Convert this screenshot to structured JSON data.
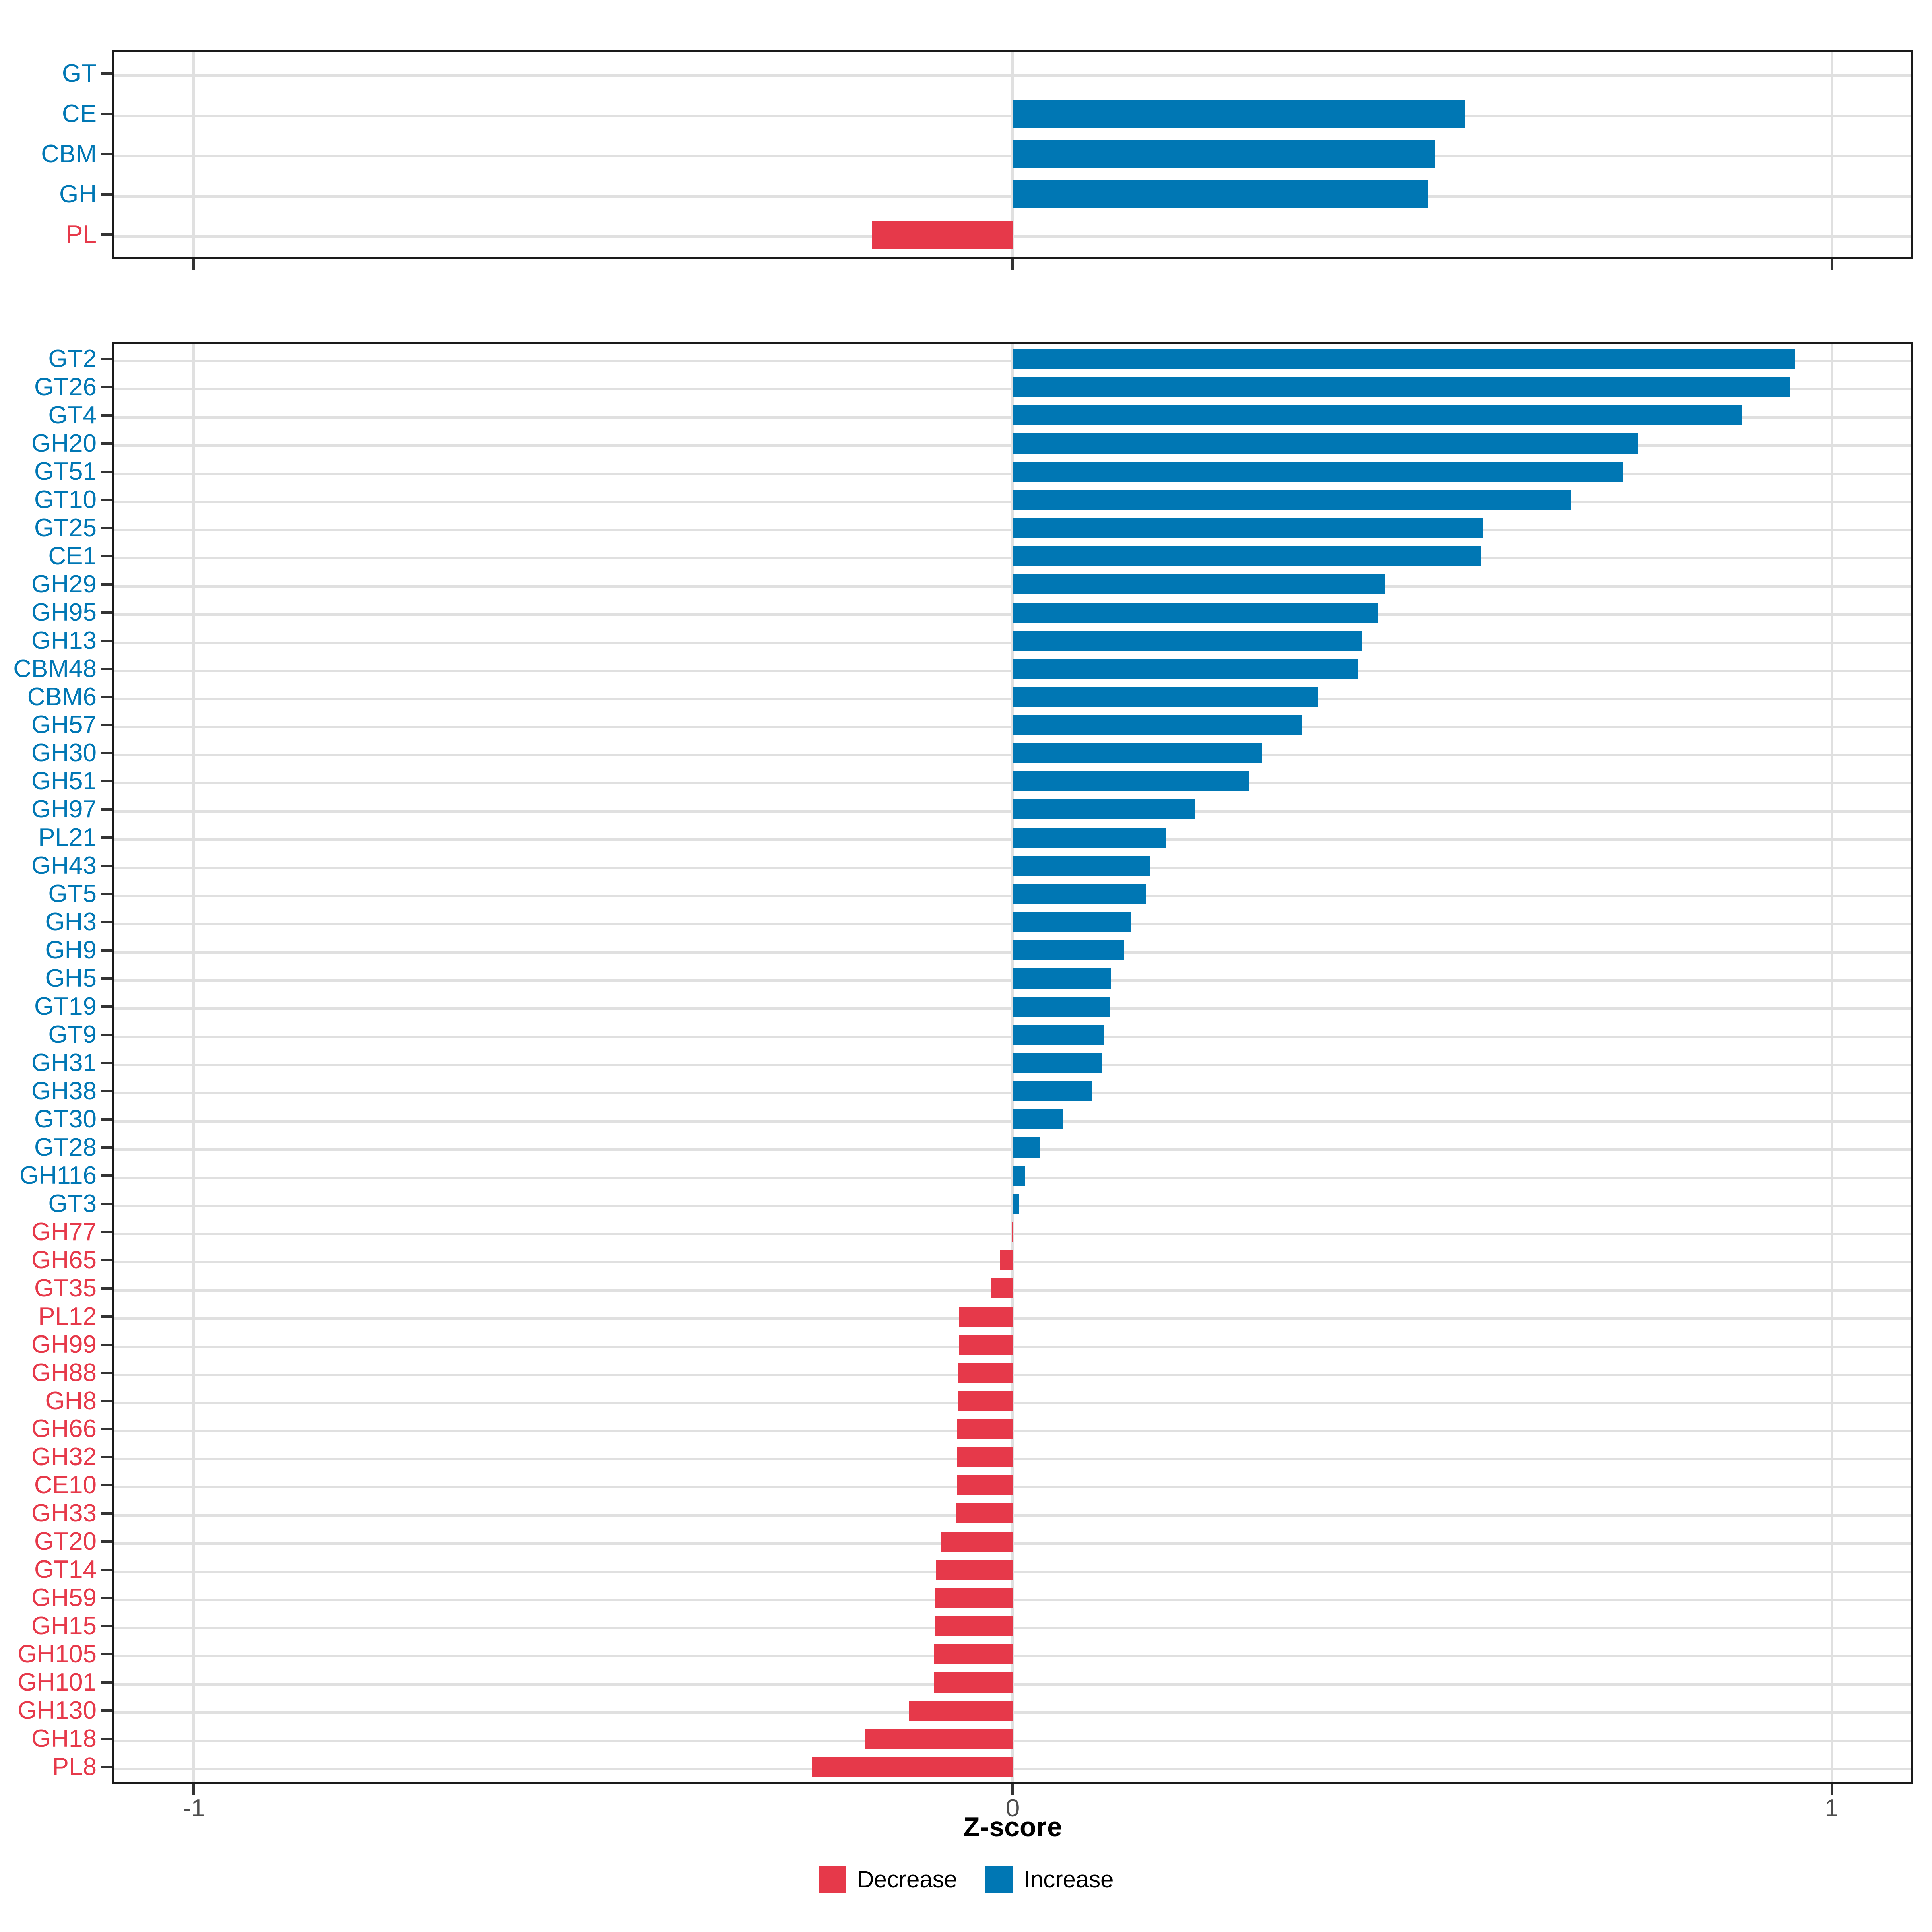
{
  "figure": {
    "xlabel": "Z-score",
    "x_ticks": [
      "-1",
      "0",
      "1"
    ],
    "x_tick_values": [
      -1,
      0,
      1
    ],
    "xlim": [
      -1.1,
      1.1
    ],
    "colors": {
      "increase": "#0077B4",
      "decrease": "#E6394A",
      "grid": "#E0E0E0",
      "panel_border": "#1A1A1A",
      "tick": "#333333",
      "tick_label": "#4D4D4D"
    },
    "legend": [
      {
        "label": "Decrease",
        "color_key": "decrease"
      },
      {
        "label": "Increase",
        "color_key": "increase"
      }
    ]
  },
  "chart_data": [
    {
      "id": "cazyme-classes",
      "type": "bar",
      "orientation": "horizontal",
      "title": "",
      "xlabel": "",
      "ylabel": "",
      "xlim": [
        -1.1,
        1.1
      ],
      "grid": true,
      "categories": [
        "GT",
        "CE",
        "CBM",
        "GH",
        "PL"
      ],
      "values": [
        0,
        0.552,
        0.516,
        0.507,
        -0.172
      ]
    },
    {
      "id": "cazyme-families",
      "type": "bar",
      "orientation": "horizontal",
      "title": "",
      "xlabel": "Z-score",
      "ylabel": "",
      "xlim": [
        -1.1,
        1.1
      ],
      "grid": true,
      "categories": [
        "GT2",
        "GT26",
        "GT4",
        "GH20",
        "GT51",
        "GT10",
        "GT25",
        "CE1",
        "GH29",
        "GH95",
        "GH13",
        "CBM48",
        "CBM6",
        "GH57",
        "GH30",
        "GH51",
        "GH97",
        "PL21",
        "GH43",
        "GT5",
        "GH3",
        "GH9",
        "GH5",
        "GT19",
        "GT9",
        "GH31",
        "GH38",
        "GT30",
        "GT28",
        "GH116",
        "GT3",
        "GH77",
        "GH65",
        "GT35",
        "PL12",
        "GH99",
        "GH88",
        "GH8",
        "GH66",
        "GH32",
        "CE10",
        "GH33",
        "GT20",
        "GT14",
        "GH59",
        "GH15",
        "GH105",
        "GH101",
        "GH130",
        "GH18",
        "PL8"
      ],
      "values": [
        0.955,
        0.949,
        0.89,
        0.764,
        0.745,
        0.682,
        0.574,
        0.572,
        0.455,
        0.446,
        0.426,
        0.422,
        0.373,
        0.353,
        0.304,
        0.289,
        0.222,
        0.187,
        0.168,
        0.163,
        0.144,
        0.136,
        0.12,
        0.119,
        0.112,
        0.109,
        0.097,
        0.062,
        0.034,
        0.015,
        0.008,
        -0.001,
        -0.015,
        -0.027,
        -0.066,
        -0.066,
        -0.067,
        -0.067,
        -0.068,
        -0.068,
        -0.068,
        -0.069,
        -0.087,
        -0.094,
        -0.095,
        -0.095,
        -0.096,
        -0.096,
        -0.127,
        -0.181,
        -0.245
      ]
    }
  ]
}
